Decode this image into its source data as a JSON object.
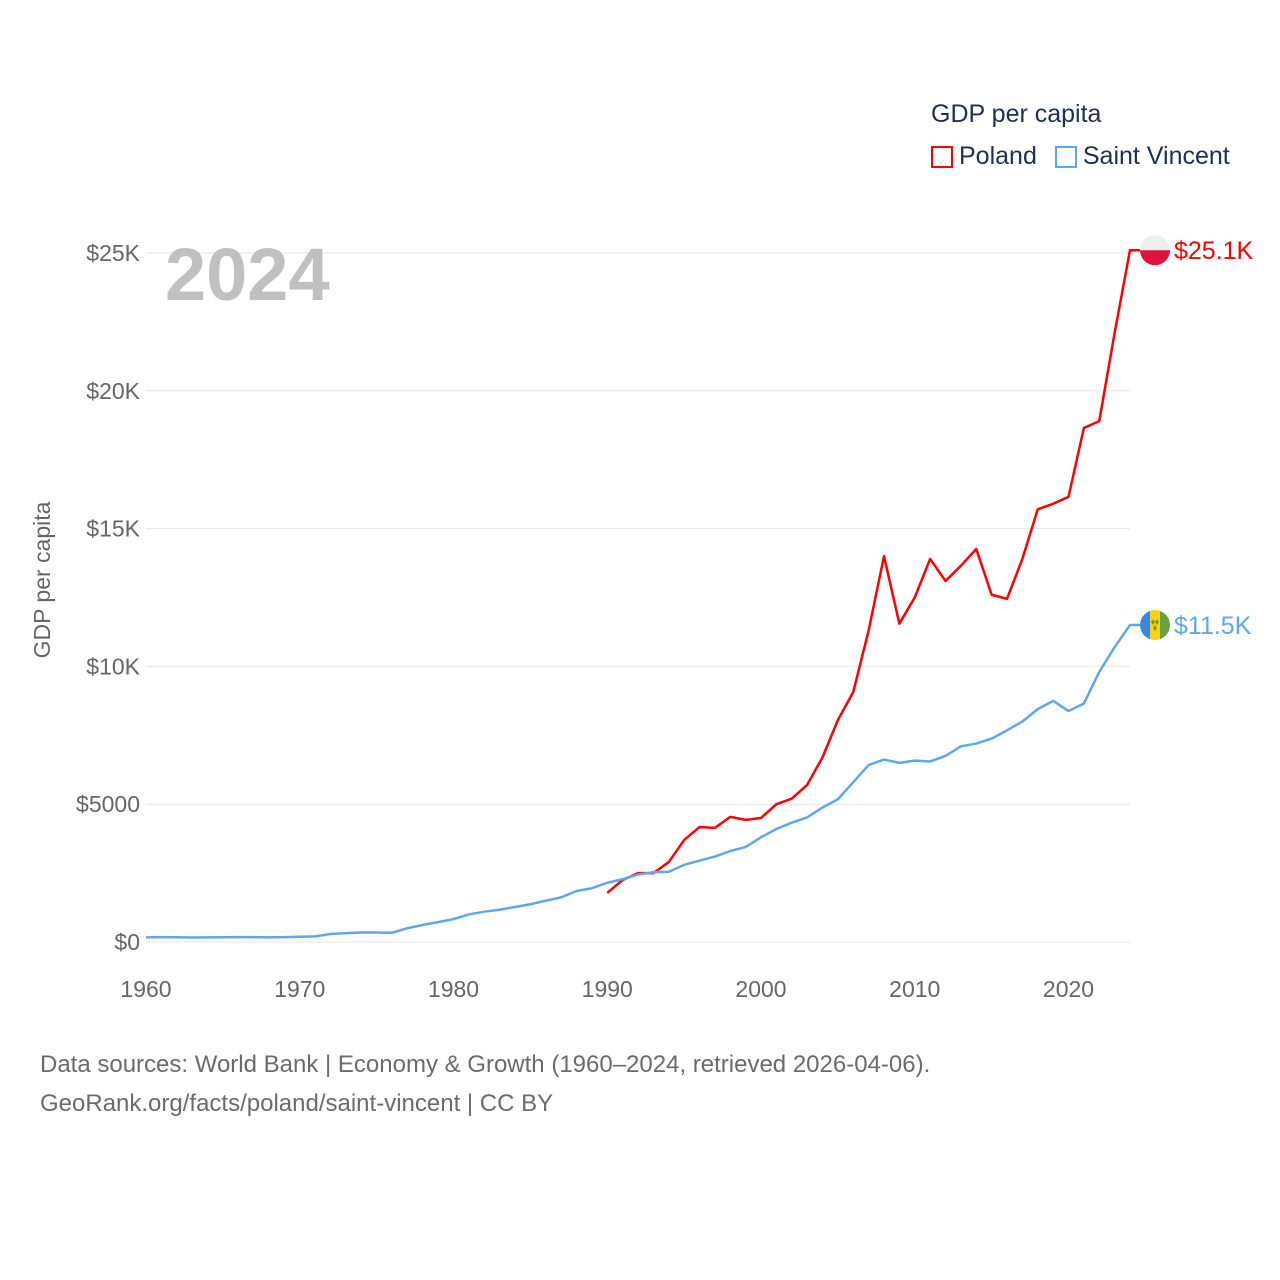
{
  "chart_data": {
    "type": "line",
    "year_label": "2024",
    "ylabel": "GDP per capita",
    "xlabel": "",
    "legend_title": "GDP per capita",
    "legend_placement": "top-right",
    "xlim": [
      1960,
      2024
    ],
    "ylim": [
      0,
      25000
    ],
    "x_ticks": [
      1960,
      1970,
      1980,
      1990,
      2000,
      2010,
      2020
    ],
    "x_tick_labels": [
      "1960",
      "1970",
      "1980",
      "1990",
      "2000",
      "2010",
      "2020"
    ],
    "y_ticks": [
      0,
      5000,
      10000,
      15000,
      20000,
      25000
    ],
    "y_tick_labels": [
      "$0",
      "$5000",
      "$10K",
      "$15K",
      "$20K",
      "$25K"
    ],
    "grid": true,
    "series": [
      {
        "name": "Poland",
        "color": "#ff0000",
        "end_label": "$25.1K",
        "x": [
          1990,
          1991,
          1992,
          1993,
          1994,
          1995,
          1996,
          1997,
          1998,
          1999,
          2000,
          2001,
          2002,
          2003,
          2004,
          2005,
          2006,
          2007,
          2008,
          2009,
          2010,
          2011,
          2012,
          2013,
          2014,
          2015,
          2016,
          2017,
          2018,
          2019,
          2020,
          2021,
          2022,
          2023,
          2024
        ],
        "values": [
          1780,
          2250,
          2500,
          2500,
          2900,
          3700,
          4170,
          4140,
          4540,
          4430,
          4500,
          5000,
          5200,
          5700,
          6700,
          8050,
          9070,
          11300,
          14000,
          11550,
          12500,
          13900,
          13100,
          13650,
          14260,
          12600,
          12450,
          13900,
          15700,
          15900,
          16150,
          18650,
          18900,
          22100,
          25100
        ]
      },
      {
        "name": "Saint Vincent",
        "color": "#5ea7ee",
        "end_label": "$11.5K",
        "x": [
          1960,
          1961,
          1962,
          1963,
          1964,
          1965,
          1966,
          1967,
          1968,
          1969,
          1970,
          1971,
          1972,
          1973,
          1974,
          1975,
          1976,
          1977,
          1978,
          1979,
          1980,
          1981,
          1982,
          1983,
          1984,
          1985,
          1986,
          1987,
          1988,
          1989,
          1990,
          1991,
          1992,
          1993,
          1994,
          1995,
          1996,
          1997,
          1998,
          1999,
          2000,
          2001,
          2002,
          2003,
          2004,
          2005,
          2006,
          2007,
          2008,
          2009,
          2010,
          2011,
          2012,
          2013,
          2014,
          2015,
          2016,
          2017,
          2018,
          2019,
          2020,
          2021,
          2022,
          2023,
          2024
        ],
        "values": [
          170,
          175,
          172,
          165,
          170,
          172,
          175,
          178,
          168,
          175,
          190,
          205,
          290,
          320,
          345,
          345,
          335,
          500,
          620,
          720,
          830,
          1000,
          1100,
          1170,
          1270,
          1370,
          1500,
          1620,
          1850,
          1950,
          2150,
          2280,
          2450,
          2530,
          2550,
          2800,
          2950,
          3100,
          3300,
          3450,
          3800,
          4100,
          4330,
          4520,
          4880,
          5180,
          5800,
          6420,
          6620,
          6500,
          6580,
          6550,
          6750,
          7100,
          7200,
          7380,
          7680,
          8000,
          8450,
          8750,
          8380,
          8650,
          9800,
          10700,
          11500
        ]
      }
    ]
  },
  "footer": {
    "line1": "Data sources: World Bank | Economy & Growth (1960–2024, retrieved 2026-04-06).",
    "line2": "GeoRank.org/facts/poland/saint-vincent | CC BY"
  }
}
